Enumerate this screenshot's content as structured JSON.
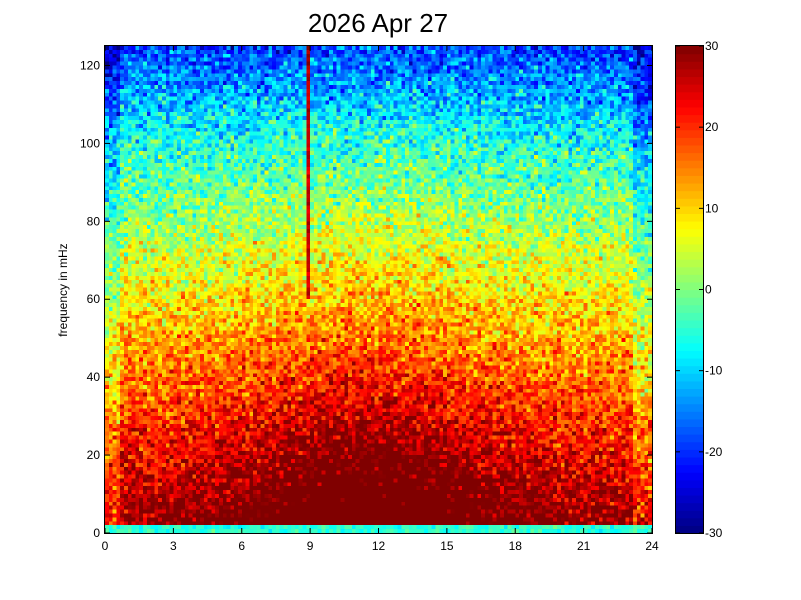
{
  "chart_data": {
    "type": "heatmap",
    "title": "2026 Apr 27",
    "xlabel": "",
    "ylabel": "frequency in mHz",
    "xlim": [
      0,
      24
    ],
    "ylim": [
      0,
      125
    ],
    "x_ticks": [
      "0",
      "3",
      "6",
      "9",
      "12",
      "15",
      "18",
      "21",
      "24"
    ],
    "x_tick_values": [
      0,
      3,
      6,
      9,
      12,
      15,
      18,
      21,
      24
    ],
    "y_ticks": [
      "0",
      "20",
      "40",
      "60",
      "80",
      "100",
      "120"
    ],
    "y_tick_values": [
      0,
      20,
      40,
      60,
      80,
      100,
      120
    ],
    "colorbar": {
      "colormap": "jet",
      "range": [
        -30,
        30
      ],
      "ticks": [
        "30",
        "20",
        "10",
        "0",
        "-10",
        "-20",
        "-30"
      ],
      "tick_values": [
        30,
        20,
        10,
        0,
        -10,
        -20,
        -30
      ]
    },
    "grid": false,
    "legend": "none",
    "features": [
      {
        "kind": "vertical_streak",
        "x": 8.9,
        "from_y": 60,
        "to_y": 125,
        "value": 26
      },
      {
        "kind": "vertical_streak",
        "x": 2.2,
        "from_y": 10,
        "to_y": 40,
        "value": 20
      },
      {
        "kind": "low_band",
        "y_from": 0,
        "y_to": 2,
        "value": -5
      },
      {
        "kind": "hot_core",
        "x_center": 11.5,
        "y_center": 15,
        "value": 30
      }
    ]
  }
}
